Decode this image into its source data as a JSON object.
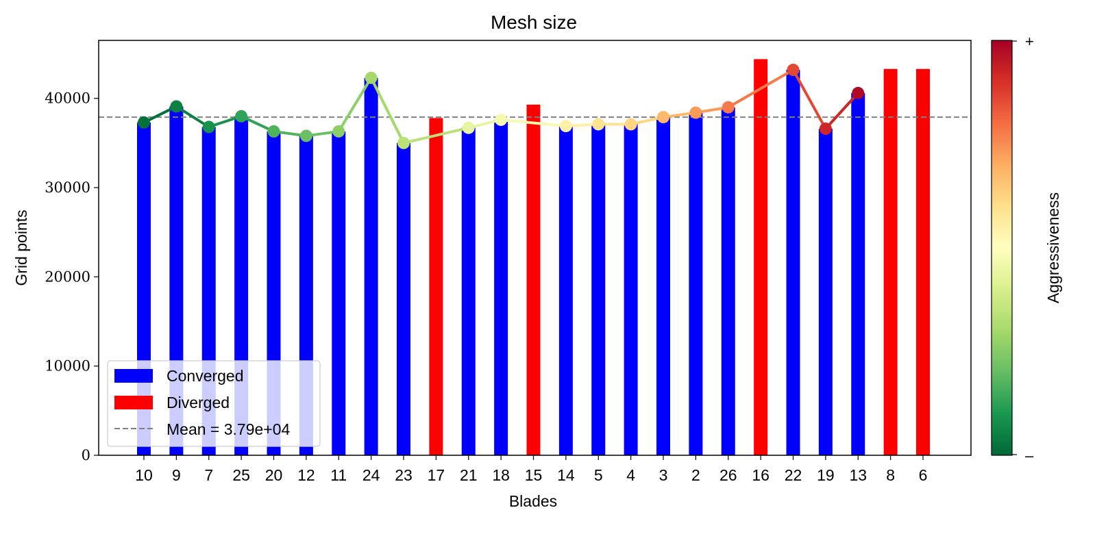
{
  "chart_data": {
    "type": "bar",
    "title": "Mesh size",
    "xlabel": "Blades",
    "ylabel": "Grid points",
    "ylim": [
      0,
      46500
    ],
    "yticks": [
      0,
      10000,
      20000,
      30000,
      40000
    ],
    "ytick_labels": [
      "0",
      "10000",
      "20000",
      "30000",
      "40000"
    ],
    "categories": [
      "10",
      "9",
      "7",
      "25",
      "20",
      "12",
      "11",
      "24",
      "23",
      "17",
      "21",
      "18",
      "15",
      "14",
      "5",
      "4",
      "3",
      "2",
      "26",
      "16",
      "22",
      "19",
      "13",
      "8",
      "6"
    ],
    "values": [
      37300,
      39100,
      36800,
      38000,
      36300,
      35800,
      36300,
      42300,
      35000,
      37800,
      36700,
      37600,
      39300,
      36900,
      37100,
      37100,
      37900,
      38400,
      39000,
      44400,
      43200,
      36600,
      40600,
      43300,
      43300
    ],
    "status": [
      "Converged",
      "Converged",
      "Converged",
      "Converged",
      "Converged",
      "Converged",
      "Converged",
      "Converged",
      "Converged",
      "Diverged",
      "Converged",
      "Converged",
      "Diverged",
      "Converged",
      "Converged",
      "Converged",
      "Converged",
      "Converged",
      "Converged",
      "Diverged",
      "Converged",
      "Converged",
      "Converged",
      "Diverged",
      "Diverged"
    ],
    "line": {
      "marker_values": [
        37300,
        39100,
        36800,
        38000,
        36300,
        35800,
        36300,
        42300,
        35000,
        null,
        36700,
        37600,
        null,
        36900,
        37100,
        37100,
        37900,
        38400,
        39000,
        null,
        43200,
        36600,
        40600,
        null,
        null
      ],
      "aggressiveness": [
        0.02,
        0.05,
        0.09,
        0.13,
        0.17,
        0.21,
        0.26,
        0.3,
        0.34,
        null,
        0.44,
        0.47,
        null,
        0.55,
        0.59,
        0.62,
        0.68,
        0.73,
        0.78,
        null,
        0.86,
        0.92,
        0.98,
        null,
        null
      ]
    },
    "mean": {
      "value": 37900,
      "label": "Mean = 3.79e+04",
      "color": "#808080"
    },
    "legend": {
      "placement": "lower-left",
      "entries": [
        {
          "label": "Converged",
          "color": "#0000ff"
        },
        {
          "label": "Diverged",
          "color": "#ff0000"
        },
        {
          "label": "Mean = 3.79e+04",
          "color": "#808080"
        }
      ]
    },
    "colorbar": {
      "label": "Aggressiveness",
      "top_label": "+",
      "bottom_label": "–",
      "colormap": "RdYlGn_r"
    },
    "colors": {
      "converged": "#0000ff",
      "diverged": "#ff0000"
    },
    "grid": false
  }
}
